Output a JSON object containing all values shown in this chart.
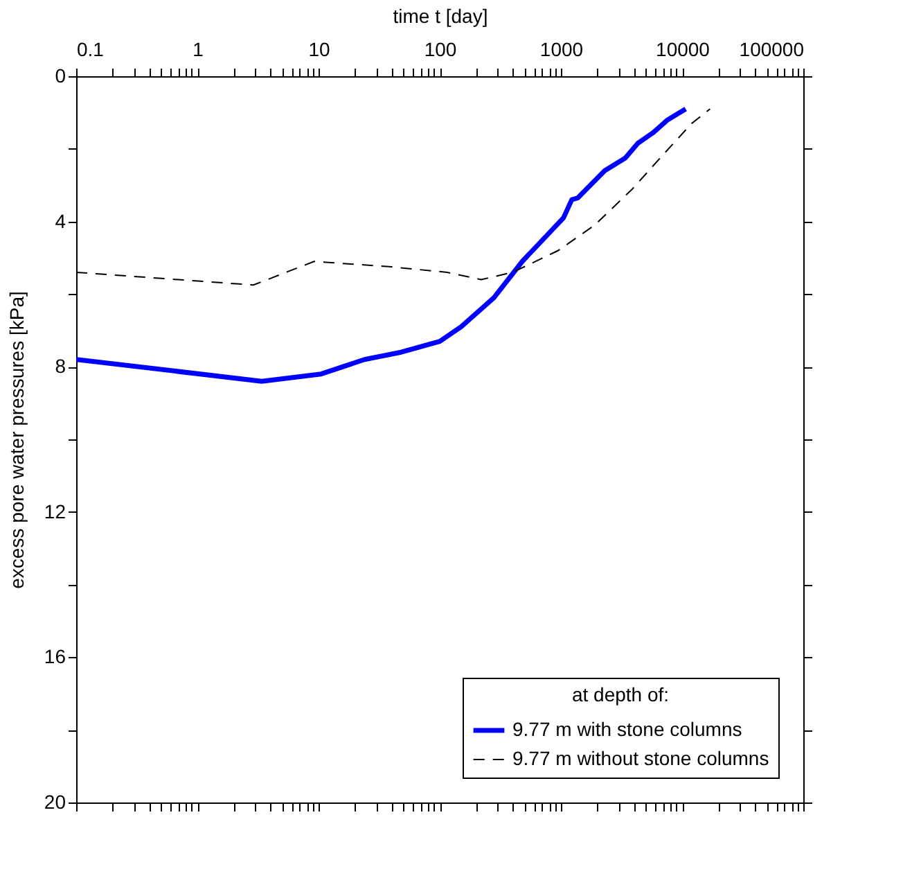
{
  "chart_data": {
    "type": "line",
    "xlabel": "time t [day]",
    "ylabel": "excess pore water pressures [kPa]",
    "legend_title": "at depth of:",
    "legend": "bottom right",
    "log": "x",
    "grid": false,
    "xlim": [
      0.1,
      100000
    ],
    "xticks": [
      0.1,
      {
        "value": 0.2,
        "label": null
      },
      {
        "value": 0.3,
        "label": null
      },
      {
        "value": 0.4,
        "label": null
      },
      {
        "value": 0.5,
        "label": null
      },
      {
        "value": 0.6,
        "label": null
      },
      {
        "value": 0.7,
        "label": null
      },
      {
        "value": 0.8,
        "label": null
      },
      {
        "value": 0.9,
        "label": null
      },
      1,
      {
        "value": 2,
        "label": null
      },
      {
        "value": 3,
        "label": null
      },
      {
        "value": 4,
        "label": null
      },
      {
        "value": 5,
        "label": null
      },
      {
        "value": 6,
        "label": null
      },
      {
        "value": 7,
        "label": null
      },
      {
        "value": 8,
        "label": null
      },
      {
        "value": 9,
        "label": null
      },
      10,
      {
        "value": 20,
        "label": null
      },
      {
        "value": 30,
        "label": null
      },
      {
        "value": 40,
        "label": null
      },
      {
        "value": 50,
        "label": null
      },
      {
        "value": 60,
        "label": null
      },
      {
        "value": 70,
        "label": null
      },
      {
        "value": 80,
        "label": null
      },
      {
        "value": 90,
        "label": null
      },
      100,
      {
        "value": 200,
        "label": null
      },
      {
        "value": 300,
        "label": null
      },
      {
        "value": 400,
        "label": null
      },
      {
        "value": 500,
        "label": null
      },
      {
        "value": 600,
        "label": null
      },
      {
        "value": 700,
        "label": null
      },
      {
        "value": 800,
        "label": null
      },
      {
        "value": 900,
        "label": null
      },
      1000,
      {
        "value": 2000,
        "label": null
      },
      {
        "value": 3000,
        "label": null
      },
      {
        "value": 4000,
        "label": null
      },
      {
        "value": 5000,
        "label": null
      },
      {
        "value": 6000,
        "label": null
      },
      {
        "value": 7000,
        "label": null
      },
      {
        "value": 8000,
        "label": null
      },
      {
        "value": 9000,
        "label": null
      },
      10000,
      {
        "value": 20000,
        "label": null
      },
      {
        "value": 30000,
        "label": null
      },
      {
        "value": 40000,
        "label": null
      },
      {
        "value": 50000,
        "label": null
      },
      {
        "value": 60000,
        "label": null
      },
      {
        "value": 70000,
        "label": null
      },
      {
        "value": 80000,
        "label": null
      },
      {
        "value": 90000,
        "label": null
      },
      100000
    ],
    "ylim": [
      20,
      0
    ],
    "yticks": [
      0,
      {
        "value": 2,
        "label": null
      },
      4,
      {
        "value": 6,
        "label": null
      },
      8,
      {
        "value": 10,
        "label": null
      },
      12,
      {
        "value": 14,
        "label": null
      },
      16,
      {
        "value": 18,
        "label": null
      },
      20
    ],
    "series": [
      {
        "name": "9.77 m with stone columns",
        "color": "#0000ff",
        "line_style": "solid",
        "x": [
          0.1,
          3.4,
          10.5,
          24,
          48,
          100,
          150,
          280,
          480,
          1050,
          1230,
          1380,
          2300,
          3400,
          4300,
          5800,
          7600,
          10700
        ],
        "values": [
          7.8,
          8.4,
          8.2,
          7.8,
          7.6,
          7.3,
          6.9,
          6.1,
          5.1,
          3.9,
          3.4,
          3.35,
          2.6,
          2.25,
          1.85,
          1.55,
          1.2,
          0.9
        ]
      },
      {
        "name": "9.77 m without stone columns",
        "color": "#000000",
        "line_style": "dashed",
        "x": [
          0.1,
          2.9,
          9.2,
          40,
          115,
          220,
          400,
          950,
          1900,
          3900,
          6600,
          12000,
          17000
        ],
        "values": [
          5.4,
          5.75,
          5.1,
          5.25,
          5.4,
          5.6,
          5.4,
          4.8,
          4.1,
          3.1,
          2.25,
          1.3,
          0.9
        ]
      }
    ]
  }
}
